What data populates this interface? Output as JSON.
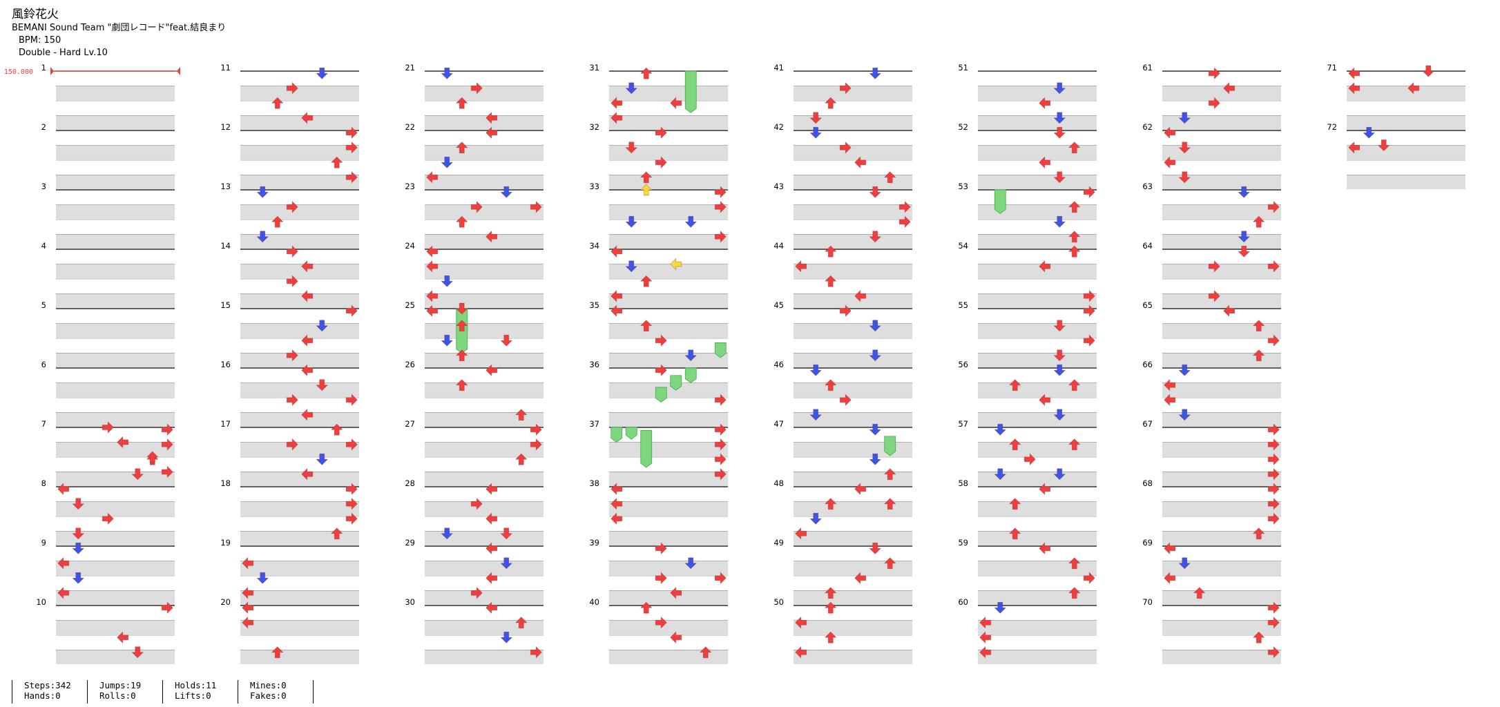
{
  "song": {
    "title": "風鈴花火",
    "artist": "BEMANI Sound Team \"劇団レコード\"feat.結良まり",
    "bpm_text": "BPM: 150",
    "difficulty": "Double - Hard  Lv.10"
  },
  "bpm_marker": "150.000",
  "measure_count": 72,
  "colors": {
    "red_arrow": "#ee3e3e",
    "blue_arrow": "#3c55e6",
    "yellow_arrow": "#f7da3a",
    "hold_green": "#7ed67e",
    "stripe_gray": "#dedede",
    "bpm_red": "#e84040"
  },
  "notes_sample": [
    {
      "measure": 7,
      "beat": 0,
      "lane": 3,
      "dir": "right",
      "color": "red"
    },
    {
      "measure": 7,
      "beat": 1,
      "lane": 4,
      "dir": "left",
      "color": "red"
    },
    {
      "measure": 7,
      "beat": 2,
      "lane": 6,
      "dir": "up",
      "color": "red"
    },
    {
      "measure": 7,
      "beat": 3,
      "lane": 7,
      "dir": "right",
      "color": "red"
    },
    {
      "measure": 25,
      "beat": 0,
      "lane": 2,
      "dir": "down",
      "color": "red",
      "hold_beats": 3
    },
    {
      "measure": 33,
      "beat": 0,
      "lane": 2,
      "dir": "up",
      "color": "yellow"
    },
    {
      "measure": 34,
      "beat": 1,
      "lane": 4,
      "dir": "left",
      "color": "yellow"
    },
    {
      "measure": 71,
      "beat": 0,
      "lane": 5,
      "dir": "down",
      "color": "red"
    },
    {
      "measure": 72,
      "beat": 1,
      "lane": 2,
      "dir": "down",
      "color": "red"
    }
  ],
  "stats": [
    [
      {
        "label": "Steps",
        "value": "342"
      },
      {
        "label": "Hands",
        "value": "0"
      }
    ],
    [
      {
        "label": "Jumps",
        "value": "19"
      },
      {
        "label": "Rolls",
        "value": "0"
      }
    ],
    [
      {
        "label": "Holds",
        "value": "11"
      },
      {
        "label": "Lifts",
        "value": "0"
      }
    ],
    [
      {
        "label": "Mines",
        "value": "0"
      },
      {
        "label": "Fakes",
        "value": "0"
      }
    ]
  ]
}
